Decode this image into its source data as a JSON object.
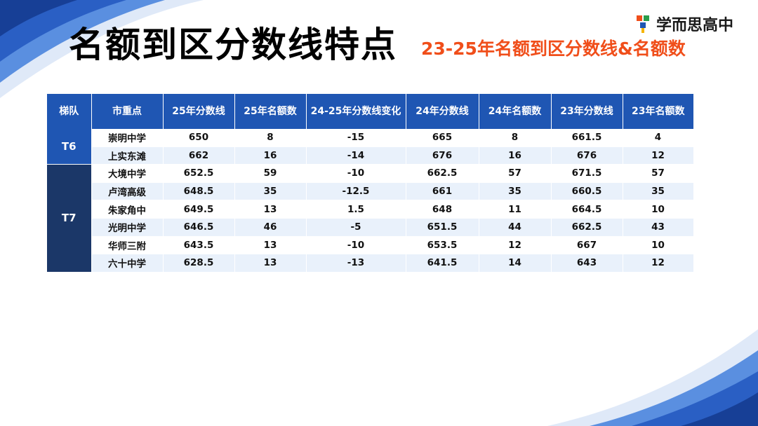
{
  "title": "名额到区分数线特点",
  "subtitle": "23-25年名额到区分数线&名额数",
  "logo": {
    "text": "学而思高中",
    "icon": "xueersi-logo-icon"
  },
  "colors": {
    "header": "#1f56b3",
    "tier_t7": "#1b3768",
    "subtitle": "#f04e1a",
    "stripe": "#e9f1fb"
  },
  "table": {
    "headers": [
      "梯队",
      "市重点",
      "25年分数线",
      "25年名额数",
      "24-25年分数线变化",
      "24年分数线",
      "24年名额数",
      "23年分数线",
      "23年名额数"
    ],
    "groups": [
      {
        "tier": "T6",
        "rows": [
          [
            "崇明中学",
            "650",
            "8",
            "-15",
            "665",
            "8",
            "661.5",
            "4"
          ],
          [
            "上实东滩",
            "662",
            "16",
            "-14",
            "676",
            "16",
            "676",
            "12"
          ]
        ]
      },
      {
        "tier": "T7",
        "rows": [
          [
            "大境中学",
            "652.5",
            "59",
            "-10",
            "662.5",
            "57",
            "671.5",
            "57"
          ],
          [
            "卢湾高级",
            "648.5",
            "35",
            "-12.5",
            "661",
            "35",
            "660.5",
            "35"
          ],
          [
            "朱家角中",
            "649.5",
            "13",
            "1.5",
            "648",
            "11",
            "664.5",
            "10"
          ],
          [
            "光明中学",
            "646.5",
            "46",
            "-5",
            "651.5",
            "44",
            "662.5",
            "43"
          ],
          [
            "华师三附",
            "643.5",
            "13",
            "-10",
            "653.5",
            "12",
            "667",
            "10"
          ],
          [
            "六十中学",
            "628.5",
            "13",
            "-13",
            "641.5",
            "14",
            "643",
            "12"
          ]
        ]
      }
    ]
  }
}
